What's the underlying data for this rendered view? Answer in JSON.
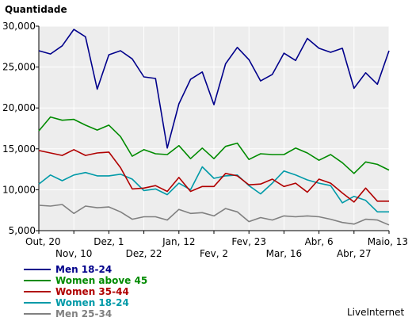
{
  "chart_data": {
    "type": "line",
    "ylabel": "Quantidade",
    "ylim": [
      5000,
      30000
    ],
    "yticks": [
      5000,
      10000,
      15000,
      20000,
      25000,
      30000
    ],
    "ytick_labels": [
      "5,000",
      "10,000",
      "15,000",
      "20,000",
      "25,000",
      "30,000"
    ],
    "xtick_labels_top": [
      "Out, 20",
      "Dez, 1",
      "Jan, 12",
      "Fev, 23",
      "Abr, 6",
      "Maio, 13"
    ],
    "xtick_labels_bottom": [
      "Nov, 10",
      "Dez, 22",
      "Fev, 2",
      "Mar, 16",
      "Abr, 27"
    ],
    "grid": true,
    "background": "#ededed",
    "legend_position": "bottom-left",
    "credit": "LiveInternet",
    "series": [
      {
        "name": "Men 18-24",
        "color": "#00008b",
        "values": [
          27000,
          26600,
          27600,
          29600,
          28700,
          22300,
          26500,
          27000,
          26000,
          23800,
          23600,
          15100,
          20500,
          23500,
          24400,
          20400,
          25400,
          27400,
          25900,
          23300,
          24100,
          26700,
          25800,
          28500,
          27300,
          26800,
          27300,
          22400,
          24300,
          22900,
          27000
        ]
      },
      {
        "name": "Women above 45",
        "color": "#008b00",
        "values": [
          17200,
          18900,
          18500,
          18600,
          17900,
          17300,
          17900,
          16500,
          14100,
          14900,
          14400,
          14300,
          15400,
          13800,
          15100,
          13800,
          15300,
          15700,
          13700,
          14400,
          14300,
          14300,
          15100,
          14500,
          13600,
          14300,
          13300,
          12000,
          13400,
          13100,
          12400
        ]
      },
      {
        "name": "Women 35-44",
        "color": "#b00000",
        "values": [
          14800,
          14500,
          14200,
          14900,
          14200,
          14500,
          14600,
          12700,
          10100,
          10200,
          10500,
          9800,
          11500,
          9800,
          10400,
          10400,
          12000,
          11700,
          10600,
          10700,
          11300,
          10400,
          10800,
          9700,
          11300,
          10800,
          9600,
          8500,
          10200,
          8600,
          8600
        ]
      },
      {
        "name": "Women 18-24",
        "color": "#009aa8",
        "values": [
          10700,
          11800,
          11100,
          11800,
          12100,
          11700,
          11700,
          11900,
          11300,
          9900,
          10100,
          9400,
          10800,
          10000,
          12800,
          11400,
          11700,
          11800,
          10500,
          9500,
          10800,
          12300,
          11800,
          11200,
          10800,
          10500,
          8400,
          9200,
          8700,
          7300,
          7300
        ]
      },
      {
        "name": "Men 25-34",
        "color": "#808080",
        "values": [
          8100,
          8000,
          8200,
          7100,
          8000,
          7800,
          7900,
          7300,
          6400,
          6700,
          6700,
          6300,
          7600,
          7100,
          7200,
          6800,
          7700,
          7300,
          6100,
          6600,
          6300,
          6800,
          6700,
          6800,
          6700,
          6400,
          6000,
          5800,
          6400,
          6300,
          5700
        ]
      }
    ]
  }
}
